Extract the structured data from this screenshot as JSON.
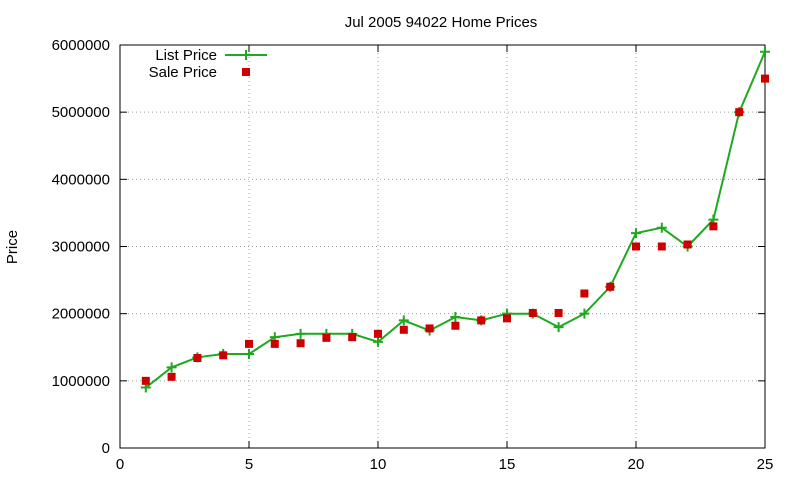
{
  "chart_data": {
    "type": "line",
    "title": "Jul 2005 94022 Home Prices",
    "xlabel": "",
    "ylabel": "Price",
    "xlim": [
      0,
      25
    ],
    "ylim": [
      0,
      6000000
    ],
    "xticks": [
      0,
      5,
      10,
      15,
      20,
      25
    ],
    "yticks": [
      0,
      1000000,
      2000000,
      3000000,
      4000000,
      5000000,
      6000000
    ],
    "grid": true,
    "legend_position": "top-left",
    "series": [
      {
        "name": "List Price",
        "style": "line-points",
        "marker": "plus",
        "color": "#1fa91f",
        "x": [
          1,
          2,
          3,
          4,
          5,
          6,
          7,
          8,
          9,
          10,
          11,
          12,
          13,
          14,
          15,
          16,
          17,
          18,
          19,
          20,
          21,
          22,
          23,
          24,
          25
        ],
        "y": [
          900000,
          1200000,
          1350000,
          1400000,
          1400000,
          1650000,
          1700000,
          1700000,
          1700000,
          1580000,
          1900000,
          1750000,
          1950000,
          1900000,
          2000000,
          2000000,
          1800000,
          2000000,
          2400000,
          3200000,
          3280000,
          3000000,
          3400000,
          5000000,
          5900000
        ]
      },
      {
        "name": "Sale Price",
        "style": "points",
        "marker": "square",
        "color": "#cc0000",
        "x": [
          1,
          2,
          3,
          4,
          5,
          6,
          7,
          8,
          9,
          10,
          11,
          12,
          13,
          14,
          15,
          16,
          17,
          18,
          19,
          20,
          21,
          22,
          23,
          24,
          25
        ],
        "y": [
          1000000,
          1060000,
          1340000,
          1380000,
          1550000,
          1550000,
          1560000,
          1640000,
          1650000,
          1700000,
          1760000,
          1780000,
          1820000,
          1900000,
          1930000,
          2010000,
          2010000,
          2300000,
          2400000,
          3000000,
          3000000,
          3030000,
          3300000,
          5000000,
          5500000
        ]
      }
    ]
  }
}
